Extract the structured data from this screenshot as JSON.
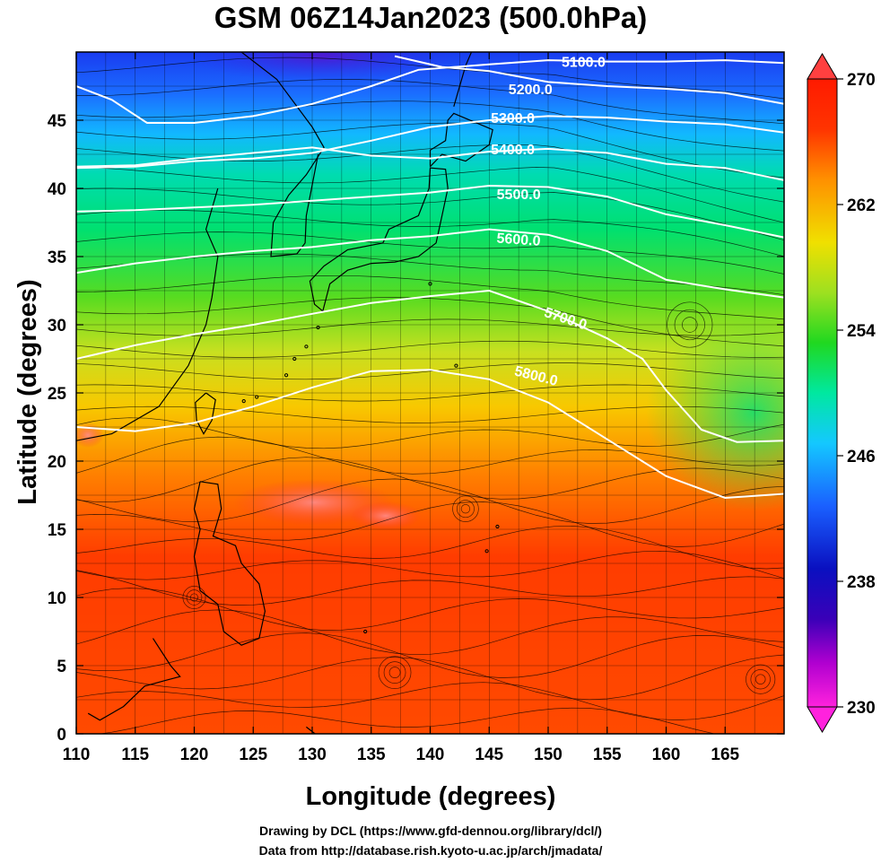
{
  "title": "GSM 06Z14Jan2023 (500.0hPa)",
  "x_axis": {
    "label": "Longitude (degrees)",
    "ticks": [
      "110",
      "115",
      "120",
      "125",
      "130",
      "135",
      "140",
      "145",
      "150",
      "155",
      "160",
      "165"
    ],
    "range": [
      110,
      170
    ]
  },
  "y_axis": {
    "label": "Latitude  (degrees)",
    "ticks": [
      "0",
      "5",
      "10",
      "15",
      "20",
      "25",
      "30",
      "35",
      "40",
      "45"
    ],
    "range": [
      0,
      50
    ]
  },
  "colorbar": {
    "min": 230,
    "max": 270,
    "tick_labels": [
      "270",
      "262",
      "254",
      "246",
      "238",
      "230"
    ],
    "colors": [
      "#ff22dd",
      "#7a00c8",
      "#1010c0",
      "#1a60ff",
      "#14c8ff",
      "#00e888",
      "#2ad02a",
      "#b8e020",
      "#f8d800",
      "#ff7800",
      "#ff2a00",
      "#ff1a00"
    ]
  },
  "contours": [
    {
      "label": "5100.0",
      "color": "#ffffff"
    },
    {
      "label": "5200.0",
      "color": "#ffffff"
    },
    {
      "label": "5300.0",
      "color": "#ffffff"
    },
    {
      "label": "5400.0",
      "color": "#ffffff"
    },
    {
      "label": "5500.0",
      "color": "#ffffff"
    },
    {
      "label": "5600.0",
      "color": "#ffffff"
    },
    {
      "label": "5700.0",
      "color": "#ffffff"
    },
    {
      "label": "5800.0",
      "color": "#ffffff"
    }
  ],
  "credits": {
    "line1": "Drawing by DCL (https://www.gfd-dennou.org/library/dcl/)",
    "line2": "Data from http://database.rish.kyoto-u.ac.jp/arch/jmadata/"
  }
}
